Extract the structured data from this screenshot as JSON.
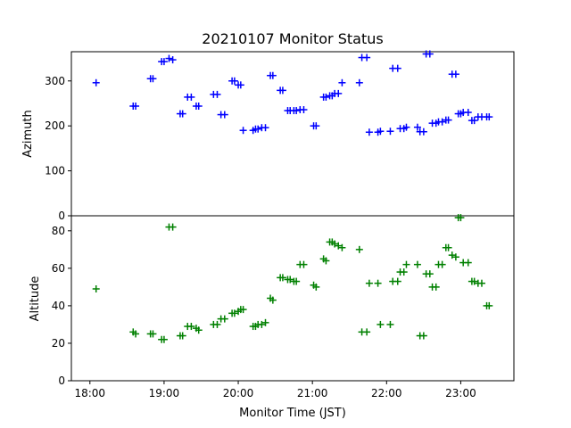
{
  "chart_data": {
    "title": "20210107 Monitor Status",
    "xlabel": "Monitor Time (JST)",
    "x_ticks": [
      "18:00",
      "19:00",
      "20:00",
      "21:00",
      "22:00",
      "23:00"
    ],
    "xlim": [
      "17:45",
      "23:43"
    ],
    "panels": [
      {
        "type": "scatter",
        "ylabel": "Azimuth",
        "ylim": [
          0,
          365
        ],
        "y_ticks": [
          0,
          100,
          200,
          300
        ],
        "color": "#0000ff",
        "marker": "+",
        "x": [
          "18:05",
          "18:35",
          "18:37",
          "18:49",
          "18:51",
          "18:58",
          "19:00",
          "19:04",
          "19:07",
          "19:13",
          "19:15",
          "19:19",
          "19:22",
          "19:26",
          "19:28",
          "19:40",
          "19:43",
          "19:46",
          "19:49",
          "19:55",
          "19:57",
          "20:00",
          "20:02",
          "20:04",
          "20:12",
          "20:14",
          "20:16",
          "20:19",
          "20:22",
          "20:26",
          "20:28",
          "20:34",
          "20:36",
          "20:40",
          "20:42",
          "20:45",
          "20:47",
          "20:50",
          "20:53",
          "21:01",
          "21:03",
          "21:09",
          "21:11",
          "21:14",
          "21:16",
          "21:18",
          "21:21",
          "21:24",
          "21:38",
          "21:40",
          "21:44",
          "21:46",
          "21:53",
          "21:55",
          "22:03",
          "22:05",
          "22:09",
          "22:11",
          "22:14",
          "22:16",
          "22:25",
          "22:27",
          "22:30",
          "22:32",
          "22:35",
          "22:37",
          "22:40",
          "22:42",
          "22:45",
          "22:48",
          "22:50",
          "22:53",
          "22:56",
          "22:58",
          "23:00",
          "23:02",
          "23:06",
          "23:09",
          "23:11",
          "23:14",
          "23:17",
          "23:21",
          "23:23"
        ],
        "y": [
          296,
          244,
          244,
          305,
          305,
          343,
          343,
          350,
          347,
          227,
          227,
          264,
          264,
          244,
          244,
          270,
          270,
          225,
          225,
          300,
          300,
          291,
          291,
          190,
          190,
          193,
          193,
          196,
          196,
          312,
          312,
          279,
          279,
          234,
          234,
          234,
          234,
          236,
          236,
          200,
          200,
          264,
          264,
          267,
          267,
          272,
          272,
          296,
          296,
          352,
          352,
          186,
          186,
          188,
          188,
          328,
          328,
          194,
          194,
          197,
          197,
          187,
          187,
          360,
          360,
          206,
          206,
          209,
          209,
          213,
          213,
          315,
          315,
          227,
          227,
          230,
          230,
          212,
          212,
          220,
          220,
          220,
          220
        ]
      },
      {
        "type": "scatter",
        "ylabel": "Altitude",
        "ylim": [
          0,
          88
        ],
        "y_ticks": [
          0,
          20,
          40,
          60,
          80
        ],
        "color": "#008000",
        "marker": "+",
        "x": [
          "18:05",
          "18:35",
          "18:37",
          "18:49",
          "18:51",
          "18:58",
          "19:00",
          "19:04",
          "19:07",
          "19:13",
          "19:15",
          "19:19",
          "19:22",
          "19:26",
          "19:28",
          "19:40",
          "19:43",
          "19:46",
          "19:49",
          "19:55",
          "19:57",
          "20:00",
          "20:02",
          "20:04",
          "20:12",
          "20:14",
          "20:16",
          "20:19",
          "20:22",
          "20:26",
          "20:28",
          "20:34",
          "20:36",
          "20:40",
          "20:42",
          "20:45",
          "20:47",
          "20:50",
          "20:53",
          "21:01",
          "21:03",
          "21:09",
          "21:11",
          "21:14",
          "21:16",
          "21:18",
          "21:21",
          "21:24",
          "21:38",
          "21:40",
          "21:44",
          "21:46",
          "21:53",
          "21:55",
          "22:03",
          "22:05",
          "22:09",
          "22:11",
          "22:14",
          "22:16",
          "22:25",
          "22:27",
          "22:30",
          "22:32",
          "22:35",
          "22:37",
          "22:40",
          "22:42",
          "22:45",
          "22:48",
          "22:50",
          "22:53",
          "22:56",
          "22:58",
          "23:00",
          "23:02",
          "23:06",
          "23:09",
          "23:11",
          "23:14",
          "23:17",
          "23:21",
          "23:23"
        ],
        "y": [
          49,
          26,
          25,
          25,
          25,
          22,
          22,
          82,
          82,
          24,
          24,
          29,
          29,
          28,
          27,
          30,
          30,
          33,
          33,
          36,
          36,
          37,
          38,
          38,
          29,
          29,
          30,
          30,
          31,
          44,
          43,
          55,
          55,
          54,
          54,
          53,
          53,
          62,
          62,
          51,
          50,
          65,
          64,
          74,
          74,
          73,
          72,
          71,
          70,
          26,
          26,
          52,
          52,
          30,
          30,
          53,
          53,
          58,
          58,
          62,
          62,
          24,
          24,
          57,
          57,
          50,
          50,
          62,
          62,
          71,
          71,
          67,
          66,
          87,
          87,
          63,
          63,
          53,
          53,
          52,
          52,
          40,
          40
        ]
      }
    ]
  }
}
